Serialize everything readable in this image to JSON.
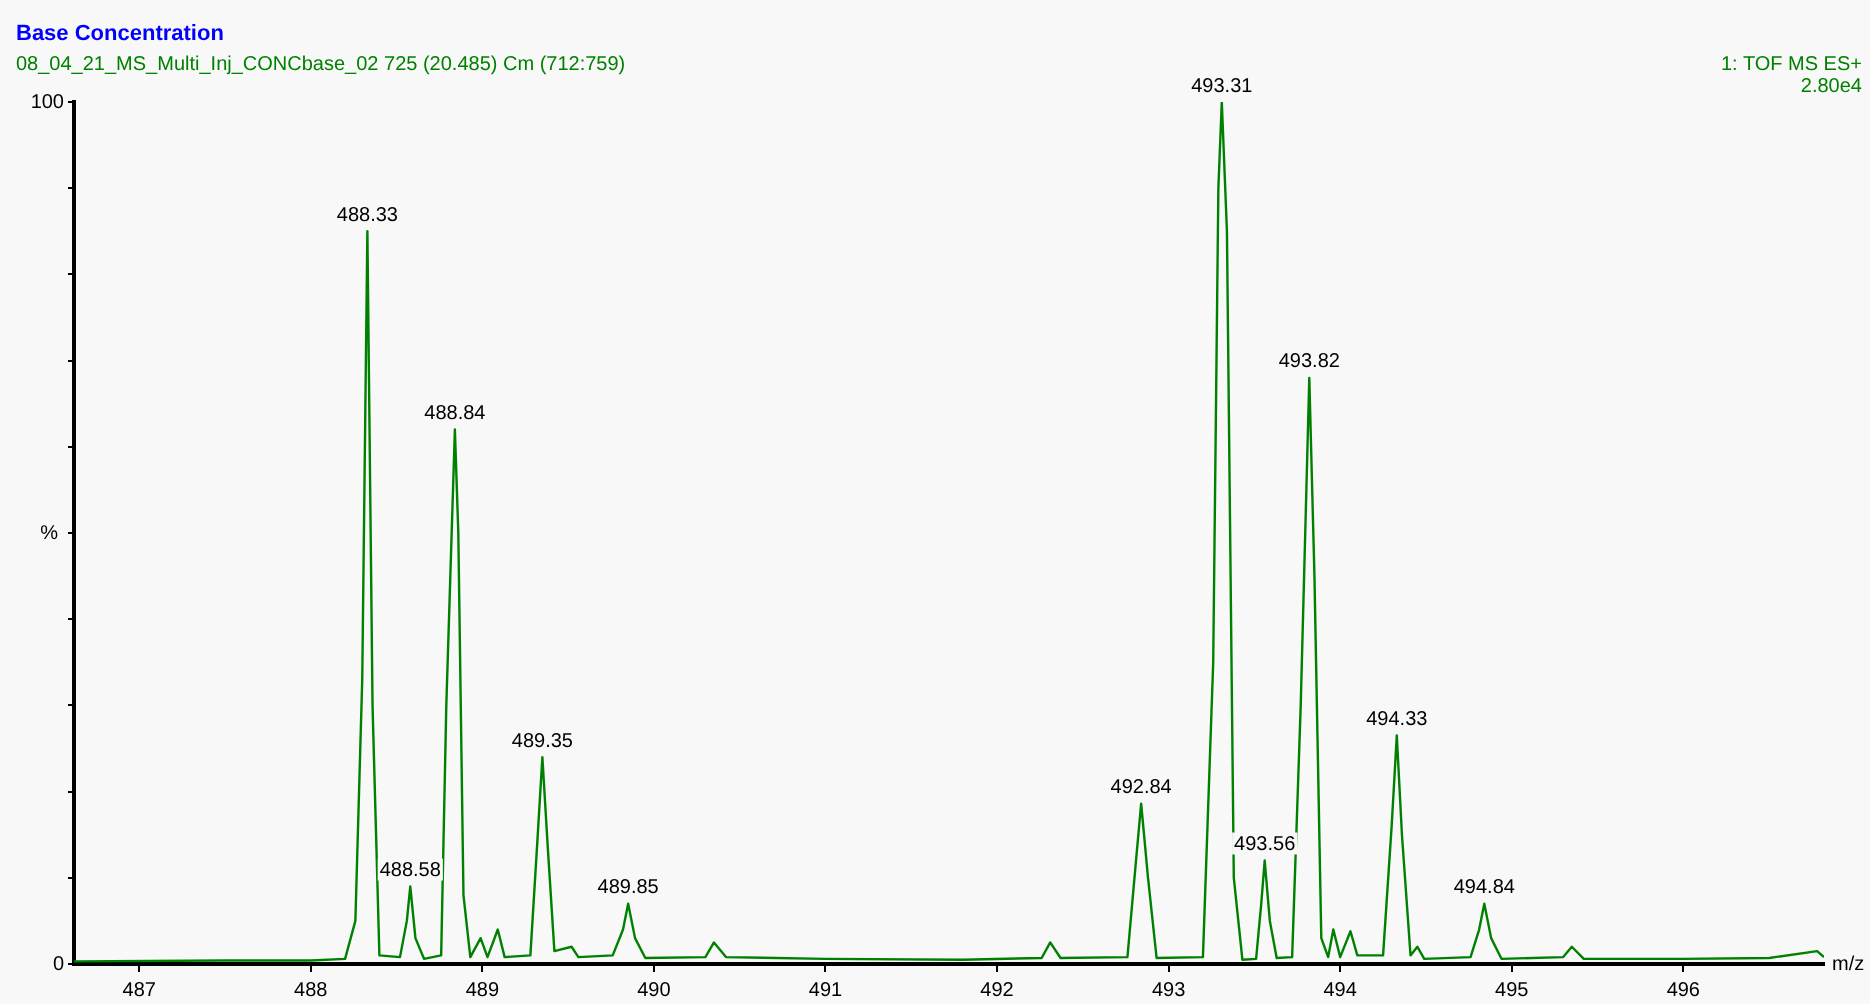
{
  "chart_data": {
    "type": "line",
    "title": "Base Concentration",
    "subtitle": "08_04_21_MS_Multi_Inj_CONCbase_02 725 (20.485) Cm (712:759)",
    "xlabel": "m/z",
    "ylabel": "%",
    "annotations": [
      "1: TOF MS ES+",
      "2.80e4",
      {
        "text": "488.33",
        "x": 488.33,
        "y": 85
      },
      {
        "text": "488.58",
        "x": 488.58,
        "y": 9
      },
      {
        "text": "488.84",
        "x": 488.84,
        "y": 62
      },
      {
        "text": "489.35",
        "x": 489.35,
        "y": 24
      },
      {
        "text": "489.85",
        "x": 489.85,
        "y": 7
      },
      {
        "text": "492.84",
        "x": 492.84,
        "y": 18.6
      },
      {
        "text": "493.31",
        "x": 493.31,
        "y": 100
      },
      {
        "text": "493.56",
        "x": 493.56,
        "y": 12
      },
      {
        "text": "493.82",
        "x": 493.82,
        "y": 68
      },
      {
        "text": "494.33",
        "x": 494.33,
        "y": 26.5
      },
      {
        "text": "494.84",
        "x": 494.84,
        "y": 7
      }
    ],
    "x": [
      486.62,
      487.5,
      488.0,
      488.2,
      488.26,
      488.3,
      488.33,
      488.36,
      488.4,
      488.52,
      488.56,
      488.58,
      488.61,
      488.66,
      488.76,
      488.79,
      488.84,
      488.86,
      488.89,
      488.93,
      488.99,
      489.03,
      489.09,
      489.13,
      489.28,
      489.32,
      489.35,
      489.38,
      489.42,
      489.52,
      489.56,
      489.76,
      489.82,
      489.85,
      489.89,
      489.95,
      490.3,
      490.35,
      490.42,
      491.0,
      491.8,
      492.26,
      492.31,
      492.37,
      492.76,
      492.81,
      492.84,
      492.88,
      492.93,
      493.2,
      493.26,
      493.29,
      493.31,
      493.34,
      493.38,
      493.43,
      493.51,
      493.54,
      493.56,
      493.59,
      493.63,
      493.72,
      493.77,
      493.82,
      493.85,
      493.89,
      493.93,
      493.96,
      494.0,
      494.06,
      494.1,
      494.25,
      494.3,
      494.33,
      494.36,
      494.41,
      494.45,
      494.49,
      494.76,
      494.81,
      494.84,
      494.88,
      494.94,
      495.3,
      495.35,
      495.42,
      496.0,
      496.5,
      496.78,
      496.82
    ],
    "series": [
      {
        "color": "#008000",
        "values": [
          0.3,
          0.4,
          0.4,
          0.6,
          5,
          33,
          85,
          30,
          1,
          0.8,
          5,
          9,
          3,
          0.6,
          1,
          30,
          62,
          50,
          8,
          0.8,
          3,
          0.8,
          4,
          0.8,
          1,
          14,
          24,
          14,
          1.5,
          2,
          0.8,
          1,
          4,
          7,
          3,
          0.7,
          0.8,
          2.5,
          0.8,
          0.6,
          0.5,
          0.7,
          2.5,
          0.7,
          0.8,
          12,
          18.6,
          10,
          0.7,
          0.8,
          35,
          90,
          100,
          85,
          10,
          0.5,
          0.6,
          7,
          12,
          5,
          0.7,
          0.8,
          30,
          68,
          45,
          3,
          0.8,
          4,
          0.8,
          3.8,
          1,
          1,
          16,
          26.5,
          15,
          1,
          2,
          0.6,
          0.8,
          4,
          7,
          3,
          0.6,
          0.8,
          2,
          0.6,
          0.6,
          0.7,
          1.5,
          0.8
        ]
      }
    ],
    "xlim": [
      486.62,
      496.82
    ],
    "xticks": [
      487,
      488,
      489,
      490,
      491,
      492,
      493,
      494,
      495,
      496
    ],
    "ylim": [
      0,
      100
    ],
    "yticks": [
      0,
      {
        "value": 10,
        "label": null
      },
      {
        "value": 20,
        "label": null
      },
      {
        "value": 30,
        "label": null
      },
      {
        "value": 40,
        "label": null
      },
      {
        "value": 50,
        "label": null
      },
      {
        "value": 60,
        "label": null
      },
      {
        "value": 70,
        "label": null
      },
      {
        "value": 80,
        "label": null
      },
      {
        "value": 90,
        "label": null
      },
      100
    ],
    "grid": false,
    "legend": false,
    "marker": "none",
    "line_style": "solid"
  }
}
